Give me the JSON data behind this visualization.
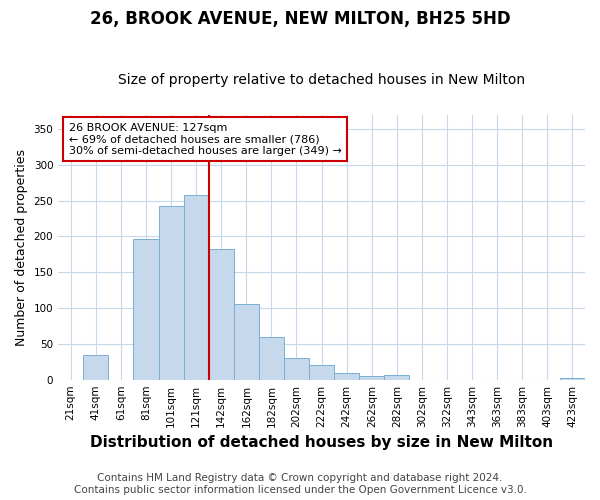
{
  "title1": "26, BROOK AVENUE, NEW MILTON, BH25 5HD",
  "title2": "Size of property relative to detached houses in New Milton",
  "xlabel": "Distribution of detached houses by size in New Milton",
  "ylabel": "Number of detached properties",
  "categories": [
    "21sqm",
    "41sqm",
    "61sqm",
    "81sqm",
    "101sqm",
    "121sqm",
    "142sqm",
    "162sqm",
    "182sqm",
    "202sqm",
    "222sqm",
    "242sqm",
    "262sqm",
    "282sqm",
    "302sqm",
    "322sqm",
    "343sqm",
    "363sqm",
    "383sqm",
    "403sqm",
    "423sqm"
  ],
  "values": [
    0,
    35,
    0,
    197,
    242,
    258,
    183,
    105,
    60,
    30,
    20,
    10,
    5,
    6,
    0,
    0,
    0,
    0,
    0,
    0,
    2
  ],
  "bar_color": "#c5d8ec",
  "bar_edge_color": "#7aafd4",
  "vline_x": 5.5,
  "vline_color": "#cc0000",
  "annotation_text": "26 BROOK AVENUE: 127sqm\n← 69% of detached houses are smaller (786)\n30% of semi-detached houses are larger (349) →",
  "annotation_box_facecolor": "#ffffff",
  "annotation_box_edgecolor": "#cc0000",
  "ylim": [
    0,
    370
  ],
  "yticks": [
    0,
    50,
    100,
    150,
    200,
    250,
    300,
    350
  ],
  "footer1": "Contains HM Land Registry data © Crown copyright and database right 2024.",
  "footer2": "Contains public sector information licensed under the Open Government Licence v3.0.",
  "bg_color": "#ffffff",
  "plot_bg_color": "#ffffff",
  "grid_color": "#c8d8ec",
  "title1_fontsize": 12,
  "title2_fontsize": 10,
  "xlabel_fontsize": 11,
  "ylabel_fontsize": 9,
  "tick_fontsize": 7.5,
  "annotation_fontsize": 8,
  "footer_fontsize": 7.5
}
